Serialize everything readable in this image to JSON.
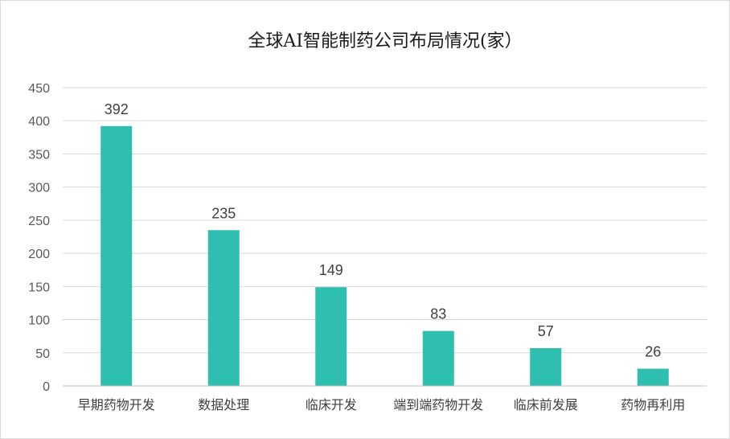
{
  "chart_data": {
    "type": "bar",
    "title": "全球AI智能制药公司布局情况(家）",
    "categories": [
      "早期药物开发",
      "数据处理",
      "临床开发",
      "端到端药物开发",
      "临床前发展",
      "药物再利用"
    ],
    "values": [
      392,
      235,
      149,
      83,
      57,
      26
    ],
    "ylim": [
      0,
      450
    ],
    "yticks": [
      "0",
      "50",
      "100",
      "150",
      "200",
      "250",
      "300",
      "350",
      "400",
      "450"
    ],
    "grid": true,
    "legend": "none",
    "bar_color": "#2fbfb0"
  }
}
